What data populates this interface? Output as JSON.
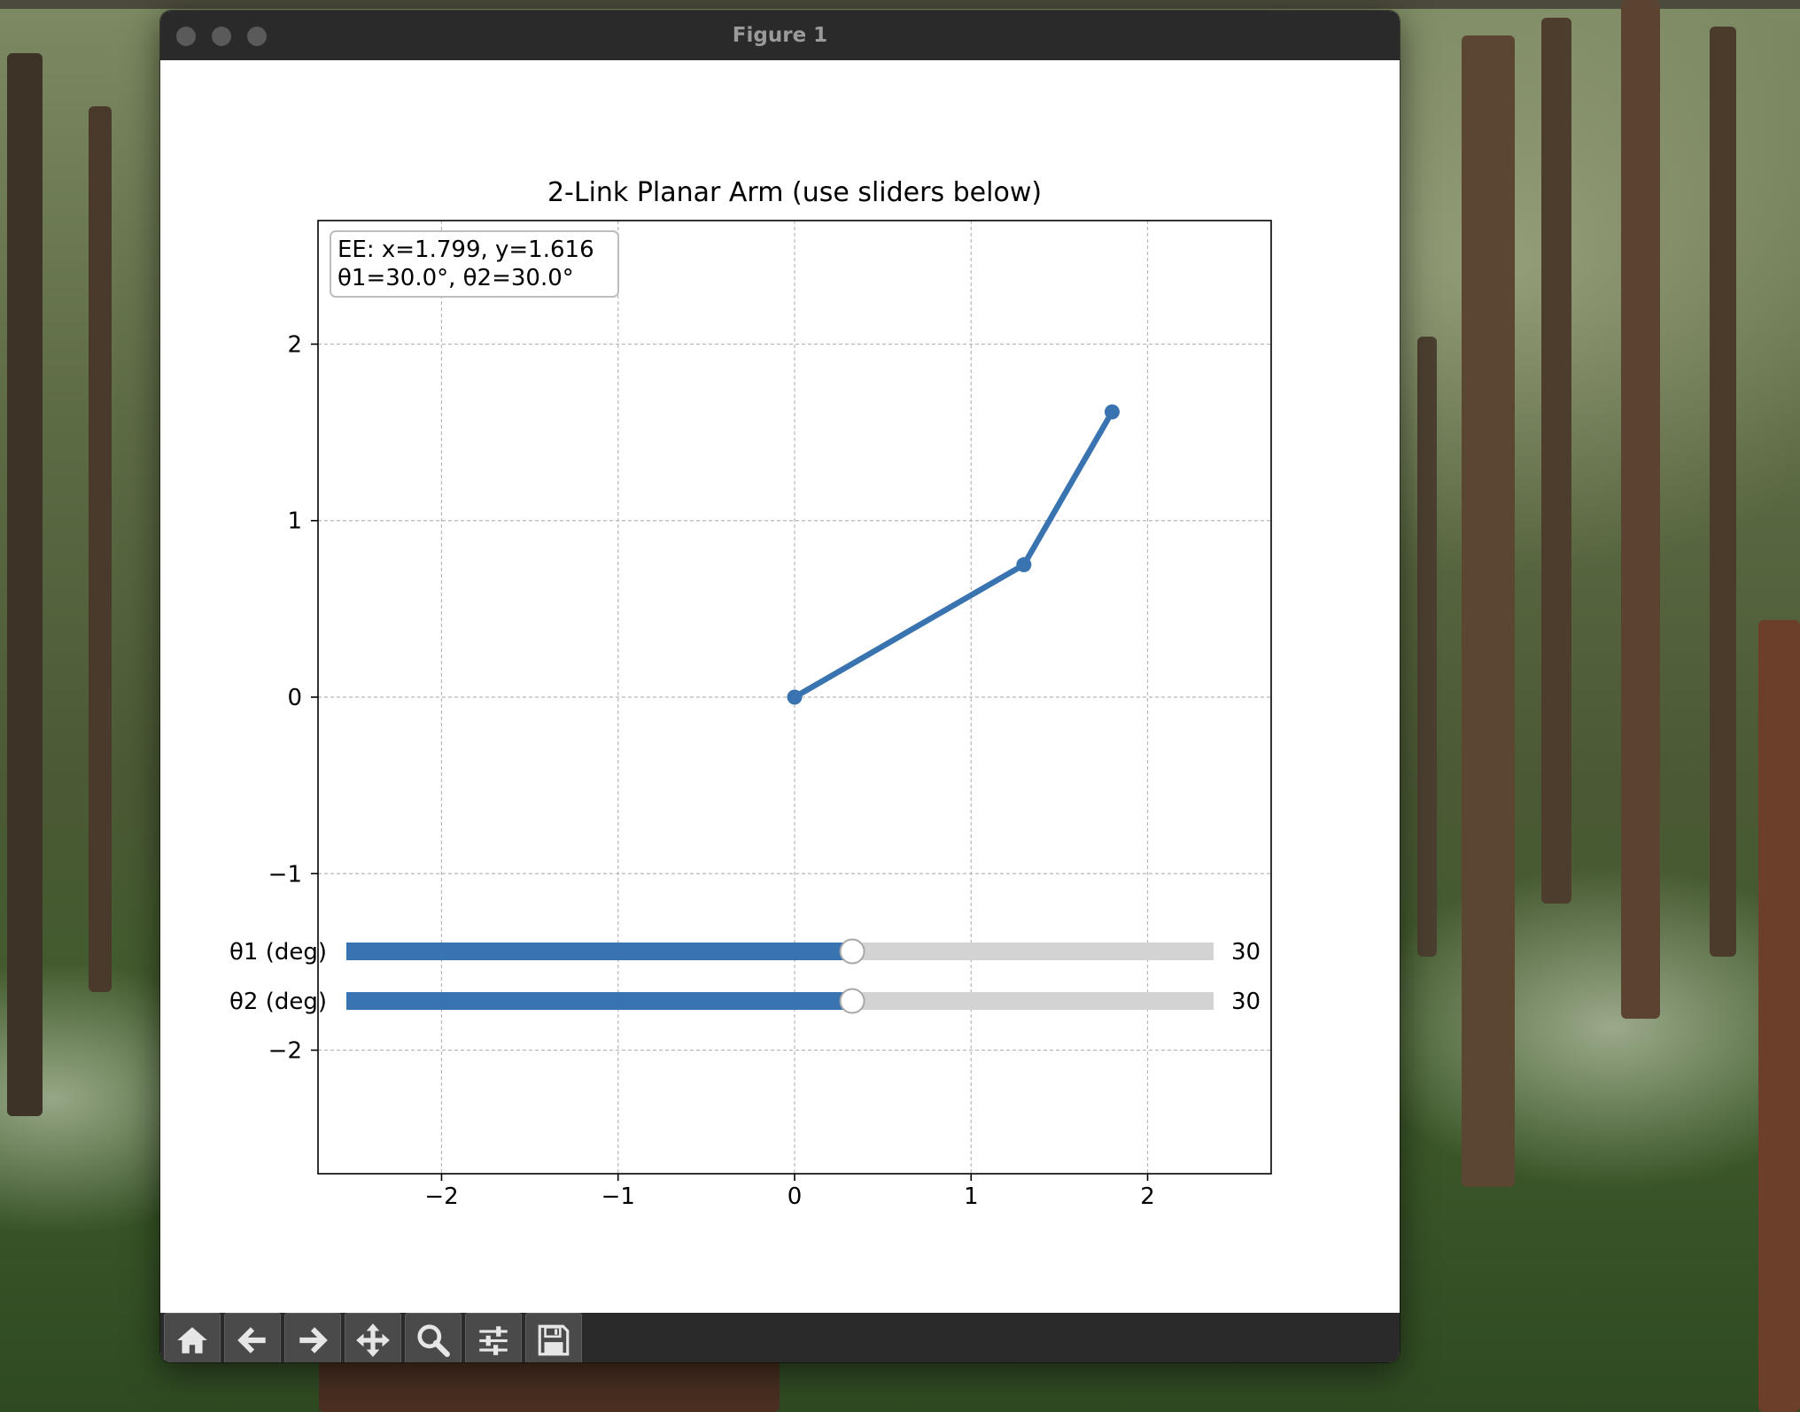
{
  "window": {
    "title": "Figure 1"
  },
  "toolbar": {
    "buttons": [
      {
        "name": "home",
        "icon": "home-icon"
      },
      {
        "name": "back",
        "icon": "arrow-left-icon"
      },
      {
        "name": "forward",
        "icon": "arrow-right-icon"
      },
      {
        "name": "pan",
        "icon": "move-icon"
      },
      {
        "name": "zoom",
        "icon": "magnifier-icon"
      },
      {
        "name": "configure-subplots",
        "icon": "sliders-icon"
      },
      {
        "name": "save",
        "icon": "floppy-disk-icon"
      }
    ]
  },
  "chart_data": {
    "type": "line",
    "title": "2-Link Planar Arm (use sliders below)",
    "xlabel": "",
    "ylabel": "",
    "xlim": [
      -2.7,
      2.7
    ],
    "ylim": [
      -2.7,
      2.7
    ],
    "xticks": [
      -2,
      -1,
      0,
      1,
      2
    ],
    "yticks": [
      -2,
      -1,
      0,
      1,
      2
    ],
    "xtick_labels": [
      "−2",
      "−1",
      "0",
      "1",
      "2"
    ],
    "ytick_labels": [
      "−2",
      "−1",
      "0",
      "1",
      "2"
    ],
    "grid": true,
    "series": [
      {
        "x": [
          0,
          1.299,
          1.799
        ],
        "y": [
          0,
          0.75,
          1.616
        ],
        "color": "#3a74b0"
      }
    ],
    "annotation": {
      "line1": "EE: x=1.799, y=1.616",
      "line2": "θ1=30.0°, θ2=30.0°",
      "placement": "top-left"
    }
  },
  "sliders": [
    {
      "label": "θ1 (deg)",
      "value_text": "30",
      "value": 30,
      "min": -180,
      "max": 180
    },
    {
      "label": "θ2 (deg)",
      "value_text": "30",
      "value": 30,
      "min": -180,
      "max": 180
    }
  ],
  "colors": {
    "accent": "#3a74b0",
    "slider_track": "#d3d3d3",
    "titlebar": "#2a2a2a"
  }
}
